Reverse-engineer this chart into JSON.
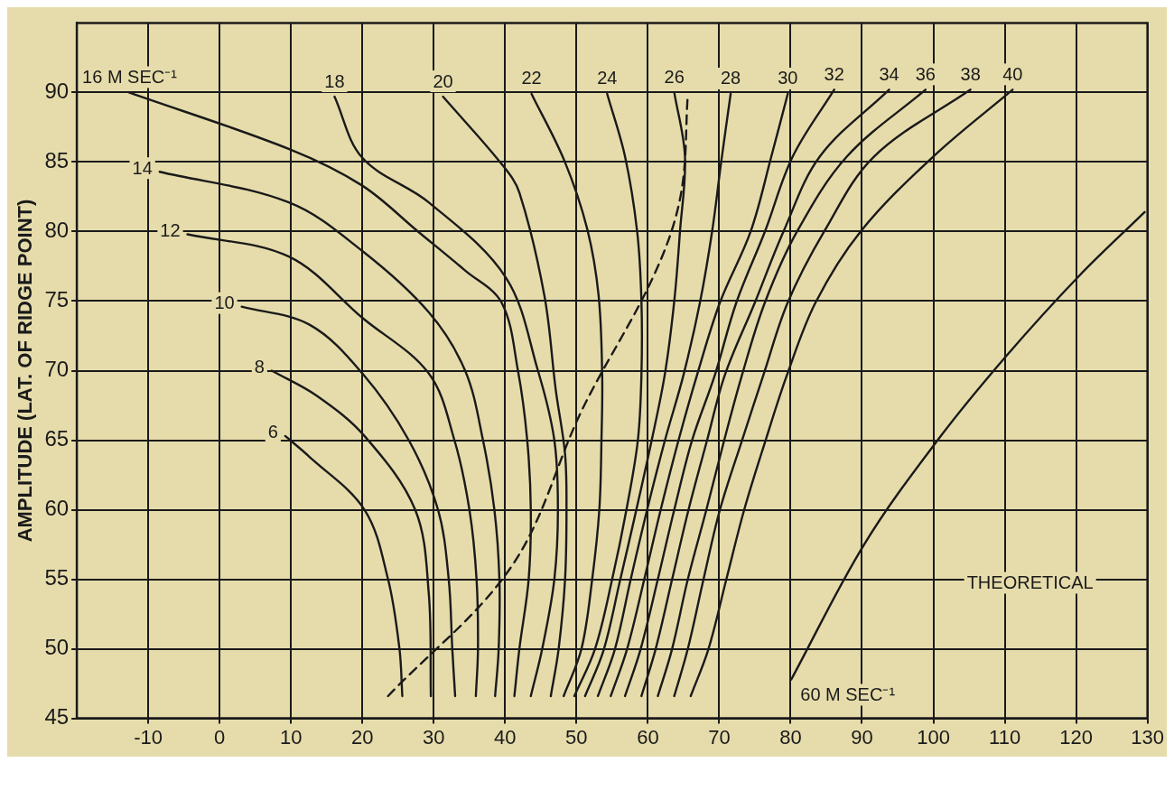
{
  "chart_data": {
    "type": "line",
    "ylabel": "AMPLITUDE (LAT. OF RIDGE POINT)",
    "xlim": [
      -20,
      130
    ],
    "xticks": [
      -10,
      0,
      10,
      20,
      30,
      40,
      50,
      60,
      70,
      80,
      90,
      100,
      110,
      120,
      130
    ],
    "ylim": [
      45,
      95
    ],
    "yticks": [
      45,
      50,
      55,
      60,
      65,
      70,
      75,
      80,
      85,
      90
    ],
    "grid": true,
    "marker": "none",
    "line_style": "solid",
    "series": [
      {
        "name": "6",
        "color": "#1a1a1a",
        "x": [
          9.2,
          12.6,
          20.3,
          23.6,
          25.2,
          25.6
        ],
        "values": [
          65.3,
          63.8,
          60,
          55,
          50,
          46.6
        ]
      },
      {
        "name": "8",
        "color": "#1a1a1a",
        "x": [
          7.3,
          13.6,
          20.3,
          27.4,
          29.3,
          29.6
        ],
        "values": [
          70,
          68.2,
          65.3,
          60,
          54,
          46.6
        ]
      },
      {
        "name": "10",
        "color": "#1a1a1a",
        "x": [
          3.1,
          12.6,
          20,
          26.5,
          30.6,
          32.1,
          32.6,
          33
        ],
        "values": [
          74.6,
          73.3,
          69.8,
          65,
          60,
          55,
          50,
          46.6
        ]
      },
      {
        "name": "12",
        "color": "#1a1a1a",
        "x": [
          -4.5,
          9.7,
          20,
          29.3,
          32.9,
          35,
          36,
          36.2,
          35.9
        ],
        "values": [
          79.8,
          78.2,
          73.8,
          69.8,
          65,
          60,
          55,
          50,
          46.6
        ]
      },
      {
        "name": "14",
        "color": "#1a1a1a",
        "x": [
          -8.4,
          9.7,
          20,
          29.3,
          34.4,
          36.9,
          38.5,
          39.2,
          39.1,
          38.6
        ],
        "values": [
          84.3,
          82.1,
          78.6,
          74.2,
          70,
          65,
          60,
          55,
          50,
          46.6
        ]
      },
      {
        "name": "16 M SEC⁻¹",
        "color": "#1a1a1a",
        "x": [
          -12.7,
          9.9,
          20,
          27.8,
          34.4,
          39.5,
          41.8,
          43.1,
          43.6,
          43.3,
          42,
          41.3
        ],
        "values": [
          90,
          85.9,
          83.3,
          80,
          77.2,
          74.9,
          70,
          65,
          60,
          55,
          50,
          46.6
        ]
      },
      {
        "name": "18",
        "color": "#1a1a1a",
        "x": [
          16.1,
          20,
          29.3,
          40.1,
          44.6,
          46.9,
          47.4,
          46.9,
          45.2,
          43.6
        ],
        "values": [
          89.7,
          85.3,
          82.1,
          76.7,
          70,
          65,
          60,
          55,
          50,
          46.6
        ]
      },
      {
        "name": "20",
        "color": "#1a1a1a",
        "x": [
          31.3,
          39.6,
          42,
          45.5,
          47.1,
          48.4,
          48.6,
          48.4,
          47.5,
          46.4
        ],
        "values": [
          89.7,
          84.8,
          82.8,
          75.4,
          68.6,
          64,
          60,
          55,
          50,
          46.6
        ]
      },
      {
        "name": "22",
        "color": "#1a1a1a",
        "x": [
          43.7,
          48.3,
          51.5,
          53.1,
          53.6,
          53.5,
          53.2,
          52.2,
          50.7,
          48.2
        ],
        "values": [
          89.9,
          85.1,
          80.2,
          75.4,
          69.7,
          65,
          60,
          55,
          50,
          46.6
        ]
      },
      {
        "name": "24",
        "color": "#1a1a1a",
        "x": [
          54.3,
          56.8,
          58.5,
          59.1,
          59.1,
          58.6,
          57,
          55,
          52.6,
          49.7
        ],
        "values": [
          89.9,
          85.4,
          80,
          75,
          69.7,
          65,
          60,
          55,
          50,
          46.6
        ]
      },
      {
        "name": "26",
        "color": "#1a1a1a",
        "x": [
          63.7,
          65.2,
          64.5,
          63.7,
          62.4,
          60.5,
          58.3,
          56.1,
          53.8,
          51.2
        ],
        "values": [
          90,
          85.4,
          80,
          75,
          69.8,
          64.9,
          59.8,
          54.9,
          49.9,
          46.6
        ]
      },
      {
        "name": "28",
        "color": "#1a1a1a",
        "x": [
          71.6,
          70.3,
          69,
          67.3,
          65,
          62.4,
          59.9,
          57.6,
          55.4,
          53
        ],
        "values": [
          89.9,
          85.1,
          80,
          74.9,
          69.7,
          65,
          60,
          55,
          50,
          46.6
        ]
      },
      {
        "name": "30",
        "color": "#1a1a1a",
        "x": [
          79.6,
          77.3,
          74.4,
          70.1,
          66.9,
          64.3,
          61.8,
          59.5,
          57.1,
          54.8
        ],
        "values": [
          89.9,
          85.4,
          80,
          74.9,
          69.7,
          65,
          60,
          55,
          50,
          46.6
        ]
      },
      {
        "name": "32",
        "color": "#1a1a1a",
        "x": [
          86.1,
          80.3,
          76.4,
          72.4,
          69.4,
          66.2,
          63.7,
          61.4,
          59,
          56.8
        ],
        "values": [
          90.2,
          85.4,
          80,
          74.9,
          69.7,
          65,
          60,
          55,
          50,
          46.6
        ]
      },
      {
        "name": "34",
        "color": "#1a1a1a",
        "x": [
          93.8,
          84.1,
          79,
          75,
          70.8,
          68.3,
          65.7,
          63.4,
          61.1,
          59.1
        ],
        "values": [
          90.2,
          85.4,
          80,
          74.9,
          69.7,
          65,
          60,
          55,
          50,
          46.6
        ]
      },
      {
        "name": "36",
        "color": "#1a1a1a",
        "x": [
          98.9,
          87.9,
          80.9,
          76.4,
          73.2,
          70.7,
          68.2,
          65.6,
          63.4,
          61.4
        ],
        "values": [
          90.2,
          85.4,
          80,
          74.9,
          69.7,
          65,
          60,
          55,
          50,
          46.6
        ]
      },
      {
        "name": "38",
        "color": "#1a1a1a",
        "x": [
          105.2,
          91.7,
          84.7,
          79.6,
          76.2,
          73.2,
          70.1,
          67.8,
          65.6,
          63.7
        ],
        "values": [
          90.2,
          85.4,
          80,
          74.9,
          69.7,
          65,
          60,
          55,
          50,
          46.6
        ]
      },
      {
        "name": "40",
        "color": "#1a1a1a",
        "x": [
          111.1,
          100,
          89.8,
          83.5,
          79.5,
          76.5,
          73.5,
          71,
          68.5,
          66
        ],
        "values": [
          90.2,
          85.4,
          80,
          74.9,
          69.7,
          65,
          60,
          55,
          50,
          46.6
        ]
      },
      {
        "color": "#1a1a1a",
        "line_style": "dashed",
        "x": [
          23.6,
          41,
          50.8,
          60.8,
          64.6,
          65.6
        ],
        "values": [
          46.6,
          56,
          67.2,
          76.8,
          82.6,
          89.9
        ]
      },
      {
        "name": "60 M SEC⁻¹",
        "color": "#1a1a1a",
        "x": [
          80.1,
          90.3,
          100.6,
          110.3,
          120.4,
          129.6
        ],
        "values": [
          47.8,
          57.5,
          65,
          71.1,
          76.8,
          81.4
        ]
      }
    ],
    "annotations": [
      "THEORETICAL"
    ]
  }
}
